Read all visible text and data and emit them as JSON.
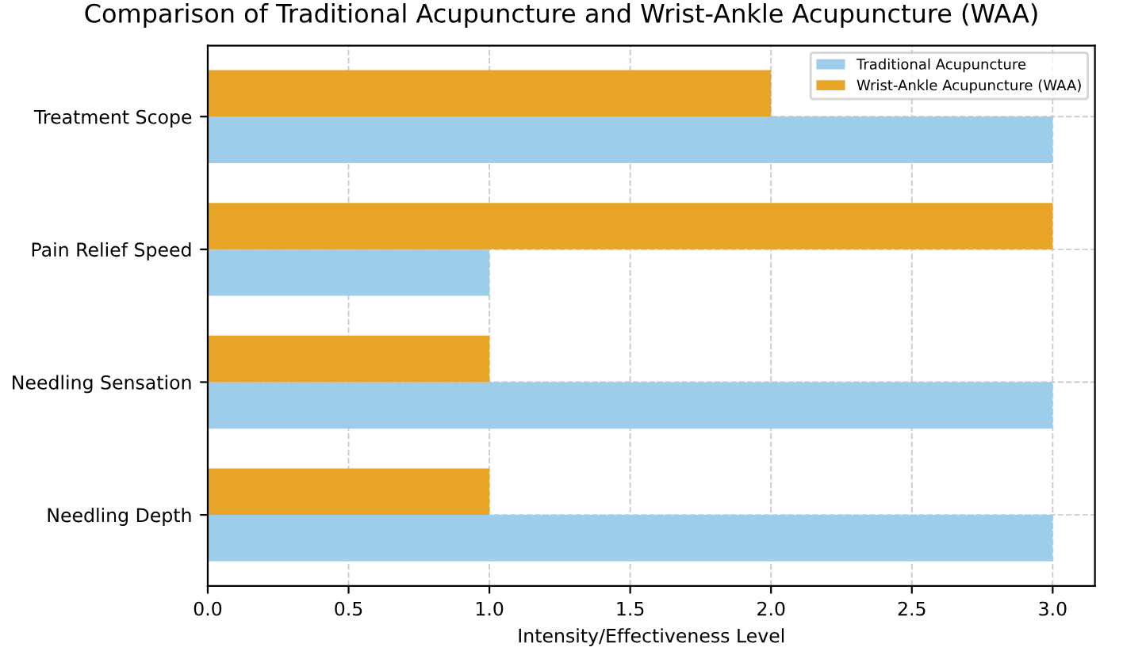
{
  "chart_data": {
    "type": "bar",
    "orientation": "horizontal",
    "title": "Comparison of Traditional Acupuncture and Wrist-Ankle Acupuncture (WAA)",
    "xlabel": "Intensity/Effectiveness Level",
    "categories": [
      "Treatment Scope",
      "Pain Relief Speed",
      "Needling Sensation",
      "Needling Depth"
    ],
    "series": [
      {
        "name": "Traditional Acupuncture",
        "color": "#9dcde8",
        "values": [
          3,
          1,
          3,
          3
        ]
      },
      {
        "name": "Wrist-Ankle Acupuncture (WAA)",
        "color": "#e8a427",
        "values": [
          2,
          3,
          1,
          1
        ]
      }
    ],
    "xlim": [
      0,
      3.15
    ],
    "xticks": [
      {
        "value": 0,
        "label": "0.0"
      },
      {
        "value": 0.5,
        "label": "0.5"
      },
      {
        "value": 1,
        "label": "1.0"
      },
      {
        "value": 1.5,
        "label": "1.5"
      },
      {
        "value": 2,
        "label": "2.0"
      },
      {
        "value": 2.5,
        "label": "2.5"
      },
      {
        "value": 3,
        "label": "3.0"
      }
    ],
    "grid": true,
    "legend": "top right"
  }
}
